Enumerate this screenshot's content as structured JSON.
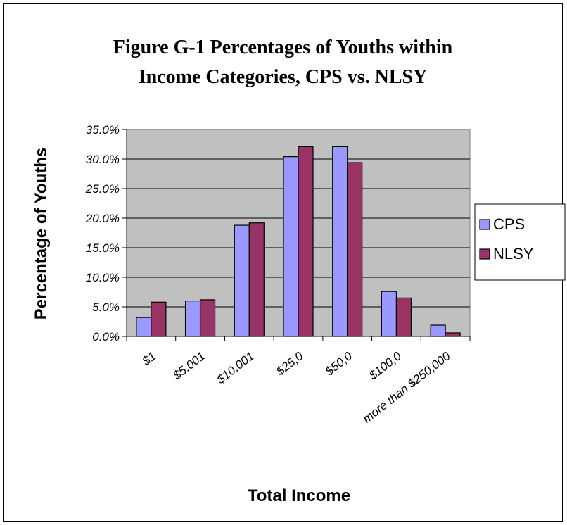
{
  "chart_data": {
    "type": "bar",
    "title_lines": [
      "Figure G-1 Percentages of Youths within",
      "Income Categories, CPS vs. NLSY"
    ],
    "xlabel": "Total Income",
    "ylabel": "Percentage of Youths",
    "categories": [
      "$1",
      "$5,001",
      "$10,001",
      "$25,0",
      "$50,0",
      "$100,0",
      "more than $250,000"
    ],
    "series": [
      {
        "name": "CPS",
        "color": "#9999ff",
        "values": [
          3.2,
          6.0,
          18.8,
          30.4,
          32.1,
          7.6,
          1.9
        ]
      },
      {
        "name": "NLSY",
        "color": "#993366",
        "values": [
          5.8,
          6.2,
          19.2,
          32.1,
          29.4,
          6.5,
          0.6
        ]
      }
    ],
    "y_ticks": [
      "0.0%",
      "5.0%",
      "10.0%",
      "15.0%",
      "20.0%",
      "25.0%",
      "30.0%",
      "35.0%"
    ],
    "ylim": [
      0,
      35
    ],
    "grid": true,
    "plot_background": "#c0c0c0",
    "legend": "right"
  }
}
